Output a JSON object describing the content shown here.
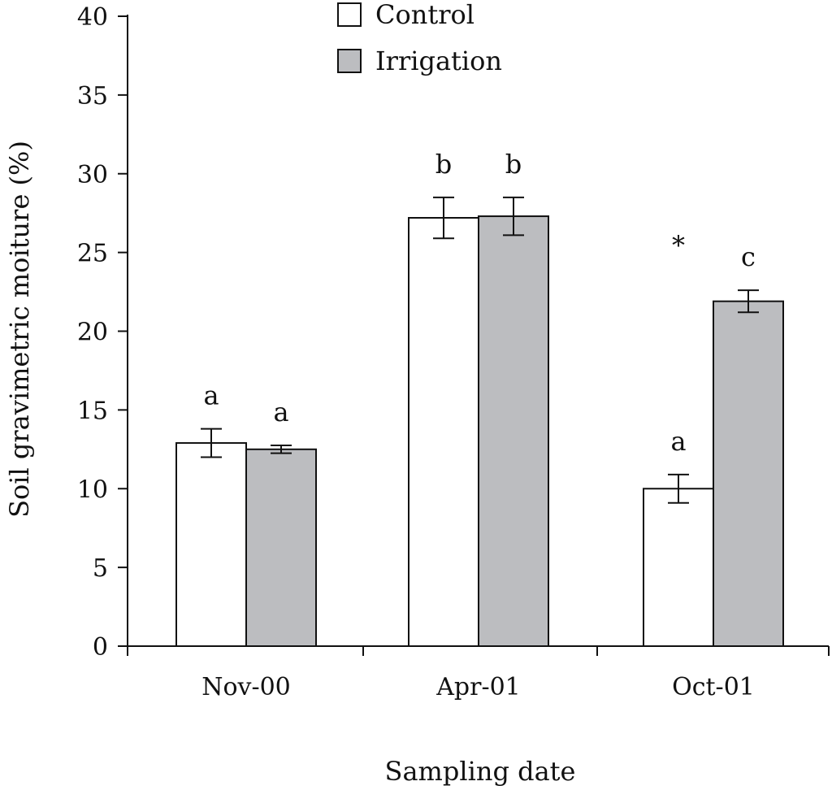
{
  "chart_data": {
    "type": "bar",
    "title": "",
    "xlabel": "Sampling date",
    "ylabel": "Soil gravimetric moiture (%)",
    "ylim": [
      0,
      40
    ],
    "yticks": [
      "0",
      "5",
      "10",
      "15",
      "20",
      "25",
      "30",
      "35",
      "40"
    ],
    "ytick_values": [
      0,
      5,
      10,
      15,
      20,
      25,
      30,
      35,
      40
    ],
    "categories": [
      "Nov-00",
      "Apr-01",
      "Oct-01"
    ],
    "series": [
      {
        "name": "Control",
        "color": "#ffffff",
        "values": [
          12.9,
          27.2,
          10.0
        ],
        "errors": [
          0.9,
          1.3,
          0.9
        ],
        "letters": [
          "a",
          "b",
          "a"
        ]
      },
      {
        "name": "Irrigation",
        "color": "#bcbdc0",
        "values": [
          12.5,
          27.3,
          21.9
        ],
        "errors": [
          0.25,
          1.2,
          0.7
        ],
        "letters": [
          "a",
          "b",
          "c"
        ]
      }
    ],
    "annotations": [
      {
        "text": "*",
        "category": "Oct-01",
        "value": 25.5
      }
    ],
    "legend": {
      "position": "top-center"
    },
    "grid": false
  }
}
